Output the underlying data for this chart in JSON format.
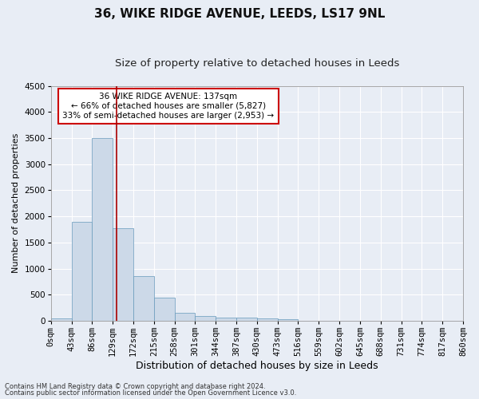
{
  "title": "36, WIKE RIDGE AVENUE, LEEDS, LS17 9NL",
  "subtitle": "Size of property relative to detached houses in Leeds",
  "xlabel": "Distribution of detached houses by size in Leeds",
  "ylabel": "Number of detached properties",
  "footer_line1": "Contains HM Land Registry data © Crown copyright and database right 2024.",
  "footer_line2": "Contains public sector information licensed under the Open Government Licence v3.0.",
  "bar_edges": [
    0,
    43,
    86,
    129,
    172,
    215,
    258,
    301,
    344,
    387,
    430,
    473,
    516,
    559,
    602,
    645,
    688,
    731,
    774,
    817,
    860
  ],
  "bar_heights": [
    40,
    1900,
    3500,
    1780,
    850,
    450,
    160,
    90,
    65,
    55,
    40,
    30,
    0,
    0,
    0,
    0,
    0,
    0,
    0,
    0
  ],
  "bar_color": "#ccd9e8",
  "bar_edgecolor": "#6699bb",
  "property_size": 137,
  "vline_color": "#aa0000",
  "annotation_line1": "36 WIKE RIDGE AVENUE: 137sqm",
  "annotation_line2": "← 66% of detached houses are smaller (5,827)",
  "annotation_line3": "33% of semi-detached houses are larger (2,953) →",
  "annotation_box_color": "#ffffff",
  "annotation_box_edgecolor": "#cc0000",
  "ylim": [
    0,
    4500
  ],
  "yticks": [
    0,
    500,
    1000,
    1500,
    2000,
    2500,
    3000,
    3500,
    4000,
    4500
  ],
  "bg_color": "#e8edf5",
  "axes_bg_color": "#e8edf5",
  "grid_color": "#ffffff",
  "title_fontsize": 11,
  "subtitle_fontsize": 9.5,
  "xlabel_fontsize": 9,
  "ylabel_fontsize": 8,
  "tick_label_fontsize": 7.5,
  "annotation_fontsize": 7.5,
  "footer_fontsize": 6
}
